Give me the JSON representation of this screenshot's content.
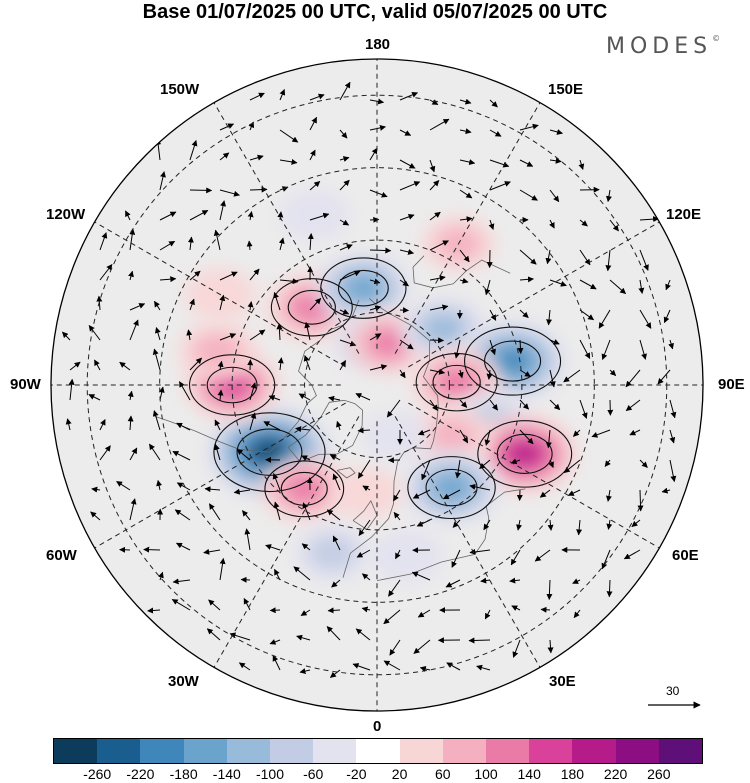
{
  "title": "Base 01/07/2025 00 UTC, valid 05/07/2025 00 UTC",
  "logo": "MODES",
  "logo_mark": "©",
  "longitude_labels": {
    "top": "180",
    "bottom": "0",
    "left": "90W",
    "right": "90E",
    "upper_left_1": "150W",
    "upper_left_2": "120W",
    "lower_left_1": "60W",
    "lower_left_2": "30W",
    "upper_right_1": "150E",
    "upper_right_2": "120E",
    "lower_right_1": "60E",
    "lower_right_2": "30E"
  },
  "reference_vector_label": "30",
  "colorbar": {
    "colors": [
      "#0d3b5c",
      "#1a5e8f",
      "#3f86ba",
      "#6aa3cc",
      "#99bbdb",
      "#c2cce4",
      "#e3e2ef",
      "#ffffff",
      "#f9d6d6",
      "#f4b0c0",
      "#ea7aa6",
      "#d9419a",
      "#b51c8a",
      "#8c0e82",
      "#5e0f78"
    ],
    "tick_labels": [
      "-260",
      "-220",
      "-180",
      "-140",
      "-100",
      "-60",
      "-20",
      "20",
      "60",
      "100",
      "140",
      "180",
      "220",
      "260"
    ]
  },
  "anomalies": [
    {
      "lon": -58,
      "lat": 55,
      "value": -270
    },
    {
      "lon": -90,
      "lat": 50,
      "value": 150
    },
    {
      "lon": -102,
      "lat": 45,
      "value": 80
    },
    {
      "lon": -140,
      "lat": 62,
      "value": 130
    },
    {
      "lon": -172,
      "lat": 63,
      "value": -150
    },
    {
      "lon": -170,
      "lat": 78,
      "value": -60
    },
    {
      "lon": 165,
      "lat": 78,
      "value": 100
    },
    {
      "lon": 130,
      "lat": 66,
      "value": -110
    },
    {
      "lon": 100,
      "lat": 52,
      "value": -200
    },
    {
      "lon": 92,
      "lat": 68,
      "value": 130
    },
    {
      "lon": 72,
      "lat": 57,
      "value": -90
    },
    {
      "lon": 65,
      "lat": 45,
      "value": 190
    },
    {
      "lon": 55,
      "lat": 65,
      "value": 90
    },
    {
      "lon": 36,
      "lat": 55,
      "value": -160
    },
    {
      "lon": -35,
      "lat": 55,
      "value": 120
    },
    {
      "lon": -15,
      "lat": 42,
      "value": -70
    },
    {
      "lon": -120,
      "lat": 40,
      "value": 50
    },
    {
      "lon": -160,
      "lat": 40,
      "value": -40
    },
    {
      "lon": 150,
      "lat": 45,
      "value": 60
    },
    {
      "lon": 10,
      "lat": 42,
      "value": -50
    },
    {
      "lon": -5,
      "lat": 60,
      "value": 40
    },
    {
      "lon": 20,
      "lat": 75,
      "value": -30
    }
  ]
}
